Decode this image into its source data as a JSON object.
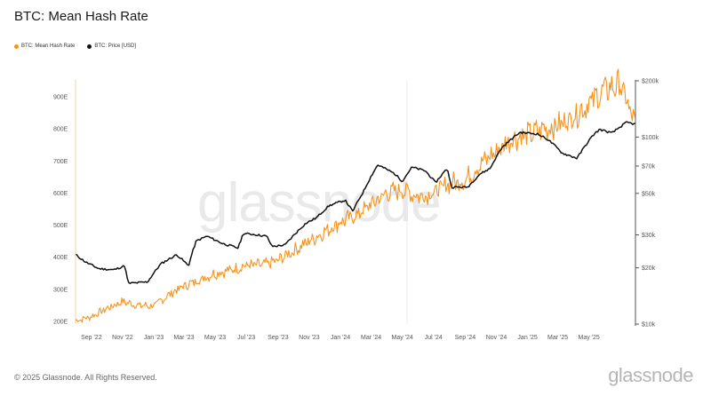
{
  "title": "BTC: Mean Hash Rate",
  "watermark": "glassnode",
  "footer": {
    "copyright": "© 2025 Glassnode. All Rights Reserved.",
    "logo": "glassnode"
  },
  "colors": {
    "hash_rate": "#f7931a",
    "price": "#111111",
    "grid": "#eeeeee"
  },
  "chart_data": {
    "type": "line",
    "title": "BTC: Mean Hash Rate",
    "legend_placement": "top-left",
    "grid": true,
    "x_range": [
      "2022-08-01",
      "2025-07-31"
    ],
    "x_ticks": [
      "Sep '22",
      "Nov '22",
      "Jan '23",
      "Mar '23",
      "May '23",
      "Jul '23",
      "Sep '23",
      "Nov '23",
      "Jan '24",
      "Mar '24",
      "May '24",
      "Jul '24",
      "Sep '24",
      "Nov '24",
      "Jan '25",
      "Mar '25",
      "May '25"
    ],
    "x_tick_dates": [
      "2022-09-01",
      "2022-11-01",
      "2023-01-01",
      "2023-03-01",
      "2023-05-01",
      "2023-07-01",
      "2023-09-01",
      "2023-11-01",
      "2024-01-01",
      "2024-03-01",
      "2024-05-01",
      "2024-07-01",
      "2024-09-01",
      "2024-11-01",
      "2025-01-01",
      "2025-03-01",
      "2025-05-01"
    ],
    "y_left": {
      "ticks": [
        "200E",
        "300E",
        "400E",
        "500E",
        "600E",
        "700E",
        "800E",
        "900E"
      ],
      "tick_values": [
        200,
        300,
        400,
        500,
        600,
        700,
        800,
        900
      ],
      "range": [
        195,
        955
      ]
    },
    "y_right": {
      "scale": "log",
      "ticks": [
        "$10k",
        "$20k",
        "$30k",
        "$50k",
        "$70k",
        "$100k",
        "$200k"
      ],
      "tick_values": [
        10000,
        20000,
        30000,
        50000,
        70000,
        100000,
        200000
      ],
      "range": [
        10000,
        200000
      ]
    },
    "series": [
      {
        "name": "BTC: Mean Hash Rate",
        "axis": "left",
        "x": [
          "2022-08-01",
          "2022-09-01",
          "2022-10-01",
          "2022-11-01",
          "2022-12-01",
          "2023-01-01",
          "2023-02-01",
          "2023-03-01",
          "2023-04-01",
          "2023-05-01",
          "2023-06-01",
          "2023-07-01",
          "2023-08-01",
          "2023-09-01",
          "2023-10-01",
          "2023-11-01",
          "2023-12-01",
          "2024-01-01",
          "2024-02-01",
          "2024-03-01",
          "2024-04-01",
          "2024-05-01",
          "2024-06-01",
          "2024-07-01",
          "2024-08-01",
          "2024-09-01",
          "2024-10-01",
          "2024-11-01",
          "2024-12-01",
          "2025-01-01",
          "2025-02-01",
          "2025-03-01",
          "2025-04-01",
          "2025-05-01",
          "2025-06-01",
          "2025-07-01",
          "2025-07-31"
        ],
        "values": [
          202,
          215,
          240,
          262,
          250,
          248,
          285,
          310,
          330,
          350,
          360,
          375,
          375,
          390,
          420,
          450,
          480,
          510,
          530,
          565,
          600,
          610,
          590,
          600,
          630,
          640,
          690,
          730,
          770,
          780,
          800,
          810,
          840,
          880,
          920,
          940,
          810
        ]
      },
      {
        "name": "BTC: Price [USD]",
        "axis": "right",
        "x": [
          "2022-08-01",
          "2022-08-20",
          "2022-09-15",
          "2022-10-15",
          "2022-11-05",
          "2022-11-12",
          "2022-12-20",
          "2023-01-15",
          "2023-02-15",
          "2023-03-10",
          "2023-03-25",
          "2023-04-15",
          "2023-05-15",
          "2023-06-15",
          "2023-06-25",
          "2023-07-15",
          "2023-08-10",
          "2023-08-20",
          "2023-09-15",
          "2023-10-25",
          "2023-11-15",
          "2023-12-10",
          "2024-01-10",
          "2024-01-25",
          "2024-02-15",
          "2024-03-14",
          "2024-04-15",
          "2024-05-01",
          "2024-05-20",
          "2024-06-15",
          "2024-07-05",
          "2024-07-28",
          "2024-08-05",
          "2024-09-06",
          "2024-09-30",
          "2024-10-20",
          "2024-11-12",
          "2024-12-17",
          "2025-01-20",
          "2025-02-10",
          "2025-03-10",
          "2025-04-08",
          "2025-05-10",
          "2025-05-22",
          "2025-06-15",
          "2025-07-14",
          "2025-07-31"
        ],
        "values": [
          23500,
          21500,
          19800,
          19500,
          20500,
          16500,
          16800,
          21000,
          23500,
          20500,
          27800,
          29500,
          27000,
          25500,
          30500,
          30200,
          29500,
          26000,
          26500,
          34500,
          37000,
          43000,
          46000,
          40000,
          51000,
          71000,
          64000,
          58000,
          69000,
          66000,
          57000,
          68000,
          54000,
          54000,
          63500,
          68000,
          88000,
          106000,
          104000,
          97000,
          82000,
          77000,
          103000,
          110000,
          105000,
          120000,
          117000
        ]
      }
    ]
  }
}
